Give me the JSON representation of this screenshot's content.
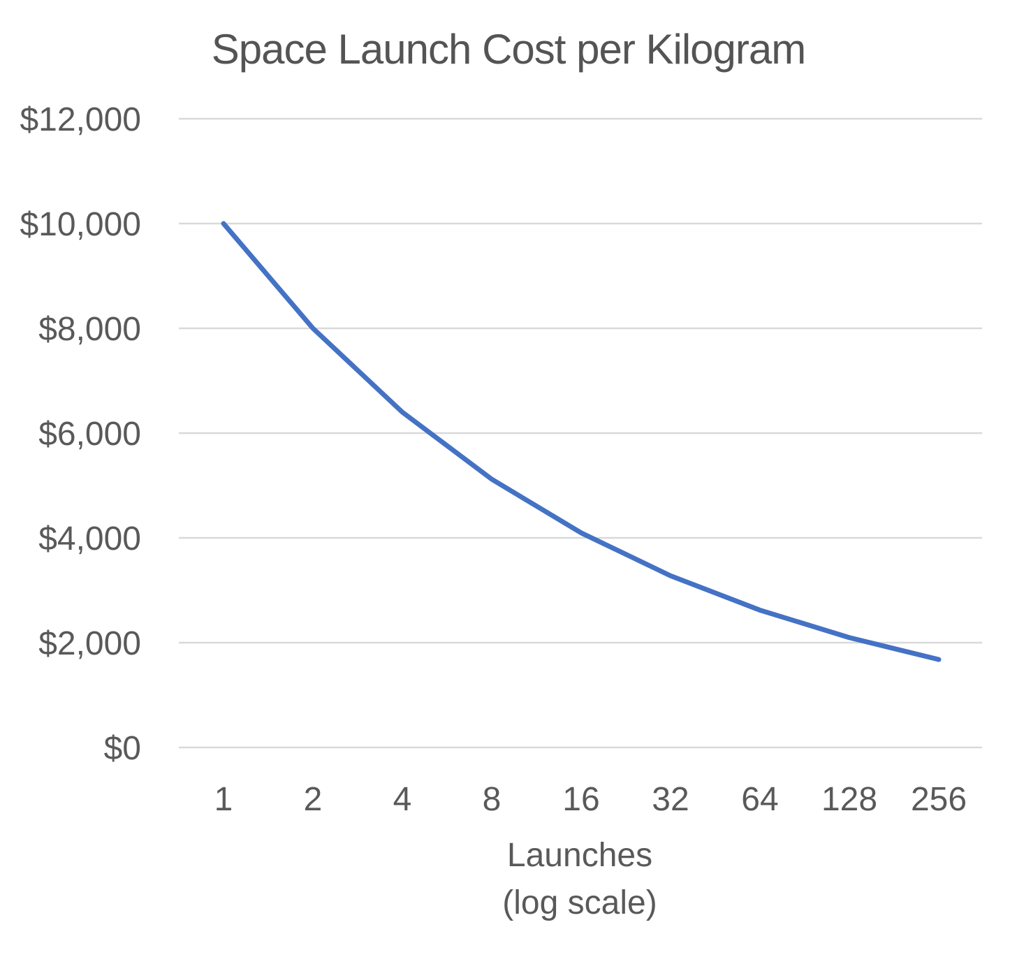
{
  "chart_data": {
    "type": "line",
    "title": "Space Launch Cost per Kilogram",
    "xlabel": "Launches",
    "xlabel_sub": "(log scale)",
    "ylabel": "",
    "x_scale": "log2",
    "categories": [
      "1",
      "2",
      "4",
      "8",
      "16",
      "32",
      "64",
      "128",
      "256"
    ],
    "x": [
      1,
      2,
      4,
      8,
      16,
      32,
      64,
      128,
      256
    ],
    "y_ticks": [
      0,
      2000,
      4000,
      6000,
      8000,
      10000,
      12000
    ],
    "y_tick_labels": [
      "$0",
      "$2,000",
      "$4,000",
      "$6,000",
      "$8,000",
      "$10,000",
      "$12,000"
    ],
    "ylim": [
      0,
      12000
    ],
    "grid": true,
    "legend": "none",
    "series": [
      {
        "values": [
          10000,
          8000,
          6400,
          5120,
          4096,
          3277,
          2621,
          2097,
          1678
        ],
        "color": "#4472C4"
      }
    ],
    "colors": {
      "line": "#4472C4",
      "grid": "#D9D9D9",
      "text": "#595959"
    }
  }
}
